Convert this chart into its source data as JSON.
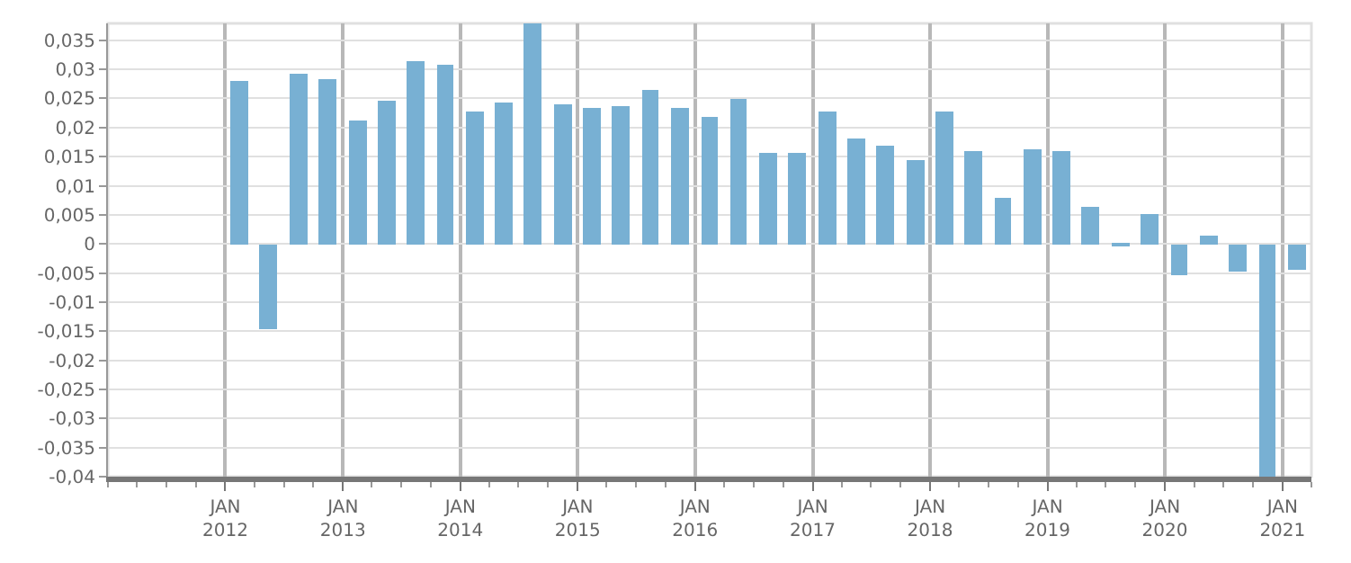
{
  "chart_data": {
    "type": "bar",
    "color": "#78b0d3",
    "x": [
      "2012-02-15",
      "2012-05-15",
      "2012-08-15",
      "2012-11-15",
      "2013-02-15",
      "2013-05-15",
      "2013-08-15",
      "2013-11-15",
      "2014-02-15",
      "2014-05-15",
      "2014-08-15",
      "2014-11-15",
      "2015-02-15",
      "2015-05-15",
      "2015-08-15",
      "2015-11-15",
      "2016-02-15",
      "2016-05-15",
      "2016-08-15",
      "2016-11-15",
      "2017-02-15",
      "2017-05-15",
      "2017-08-15",
      "2017-11-15",
      "2018-02-15",
      "2018-05-15",
      "2018-08-15",
      "2018-11-15",
      "2019-02-15",
      "2019-05-15",
      "2019-08-15",
      "2019-11-15",
      "2020-02-15",
      "2020-05-15",
      "2020-08-15",
      "2020-11-15",
      "2021-02-15"
    ],
    "values": [
      0.028,
      -0.0147,
      0.0294,
      0.0282,
      0.0212,
      0.0247,
      0.0315,
      0.0309,
      0.0229,
      0.0244,
      0.0378,
      0.0241,
      0.0235,
      0.0238,
      0.0265,
      0.0235,
      0.0218,
      0.025,
      0.0156,
      0.0156,
      0.0226,
      0.0182,
      0.0168,
      0.0144,
      0.0226,
      0.0159,
      0.0079,
      0.0162,
      0.0159,
      0.0065,
      -0.0003,
      0.005,
      -0.0053,
      0.0015,
      -0.0047,
      -0.04,
      -0.0043
    ],
    "xlim": [
      "2011-01-01",
      "2021-04-01"
    ],
    "xticks": [
      {
        "value": "2012-01-01",
        "label": "JAN\n2012"
      },
      {
        "value": "2013-01-01",
        "label": "JAN\n2013"
      },
      {
        "value": "2014-01-01",
        "label": "JAN\n2014"
      },
      {
        "value": "2015-01-01",
        "label": "JAN\n2015"
      },
      {
        "value": "2016-01-01",
        "label": "JAN\n2016"
      },
      {
        "value": "2017-01-01",
        "label": "JAN\n2017"
      },
      {
        "value": "2018-01-01",
        "label": "JAN\n2018"
      },
      {
        "value": "2019-01-01",
        "label": "JAN\n2019"
      },
      {
        "value": "2020-01-01",
        "label": "JAN\n2020"
      },
      {
        "value": "2021-01-01",
        "label": "JAN\n2021"
      }
    ],
    "ylim": [
      -0.04,
      0.0379
    ],
    "yticks": [
      {
        "value": 0.035,
        "label": "0,035"
      },
      {
        "value": 0.03,
        "label": "0,03"
      },
      {
        "value": 0.025,
        "label": "0,025"
      },
      {
        "value": 0.02,
        "label": "0,02"
      },
      {
        "value": 0.015,
        "label": "0,015"
      },
      {
        "value": 0.01,
        "label": "0,01"
      },
      {
        "value": 0.005,
        "label": "0,005"
      },
      {
        "value": 0,
        "label": "0"
      },
      {
        "value": -0.005,
        "label": "-0,005"
      },
      {
        "value": -0.01,
        "label": "-0,01"
      },
      {
        "value": -0.015,
        "label": "-0,015"
      },
      {
        "value": -0.02,
        "label": "-0,02"
      },
      {
        "value": -0.025,
        "label": "-0,025"
      },
      {
        "value": -0.03,
        "label": "-0,03"
      },
      {
        "value": -0.035,
        "label": "-0,035"
      },
      {
        "value": -0.04,
        "label": "-0,04"
      }
    ],
    "grid": true
  }
}
